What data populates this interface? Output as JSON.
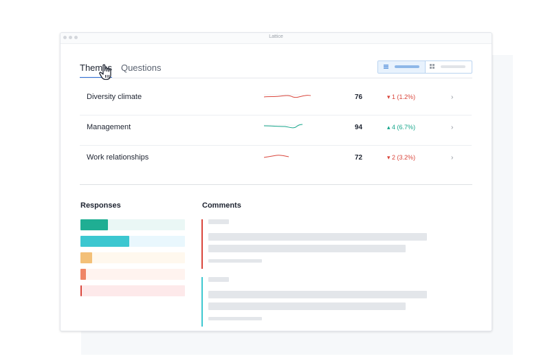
{
  "window": {
    "title": "Lattice"
  },
  "tabs": [
    {
      "label": "Themes",
      "active": true
    },
    {
      "label": "Questions",
      "active": false
    }
  ],
  "view_toggle": {
    "active": "list"
  },
  "themes": [
    {
      "label": "Diversity climate",
      "score": "76",
      "delta": "1 (1.2%)",
      "direction": "down",
      "color": "#d9443a"
    },
    {
      "label": "Management",
      "score": "94",
      "delta": "4 (6.7%)",
      "direction": "up",
      "color": "#14a58a"
    },
    {
      "label": "Work relationships",
      "score": "72",
      "delta": "2 (3.2%)",
      "direction": "down",
      "color": "#d9443a"
    }
  ],
  "responses": {
    "title": "Responses",
    "bars": [
      {
        "value": 0.26,
        "color": "#1fae93",
        "track": "#eaf7f5"
      },
      {
        "value": 0.47,
        "color": "#3cc7d0",
        "track": "#e9f7fd"
      },
      {
        "value": 0.11,
        "color": "#f3c078",
        "track": "#fff8ee"
      },
      {
        "value": 0.05,
        "color": "#ef8566",
        "track": "#fff3ef"
      },
      {
        "value": 0.015,
        "color": "#d9443a",
        "track": "#fde9ea"
      }
    ]
  },
  "comments": {
    "title": "Comments",
    "items": [
      {
        "accent": "#d9443a"
      },
      {
        "accent": "#3cc7d0"
      }
    ]
  },
  "icons": {
    "down": "caret-down-icon",
    "up": "caret-up-icon",
    "chevron": "chevron-right-icon",
    "cursor": "hand-pointer-icon"
  }
}
